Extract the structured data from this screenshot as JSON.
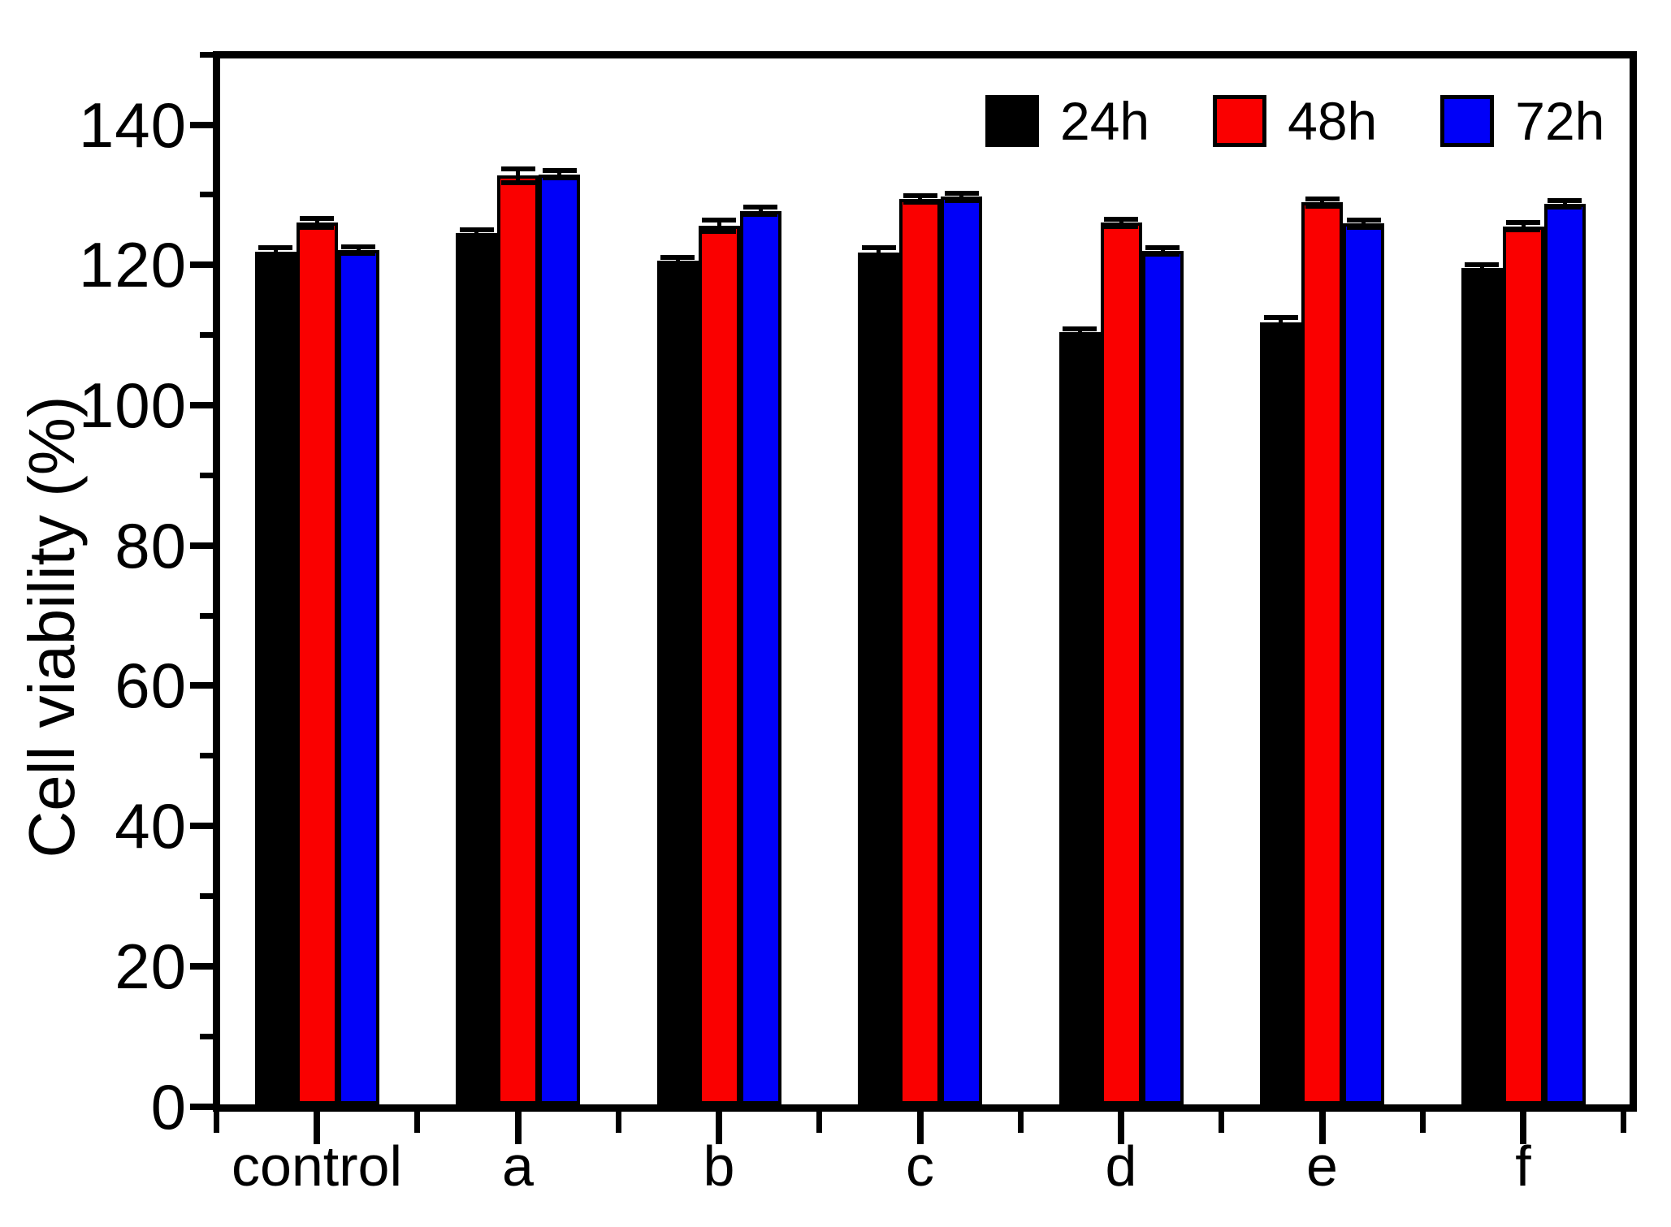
{
  "chart_data": {
    "type": "bar",
    "title": "",
    "xlabel": "",
    "ylabel": "Cell viability (%)",
    "categories": [
      "control",
      "a",
      "b",
      "c",
      "d",
      "e",
      "f"
    ],
    "series": [
      {
        "name": "24h",
        "color": "#000000",
        "values": [
          121.6,
          124.2,
          120.3,
          121.5,
          110.1,
          111.5,
          119.2
        ],
        "errors": [
          0.5,
          0.5,
          0.5,
          0.7,
          0.5,
          0.7,
          0.5
        ]
      },
      {
        "name": "48h",
        "color": "#fa0000",
        "values": [
          125.7,
          132.4,
          125.3,
          129.1,
          125.7,
          128.6,
          125.2
        ],
        "errors": [
          0.6,
          1.0,
          0.8,
          0.5,
          0.5,
          0.5,
          0.5
        ]
      },
      {
        "name": "72h",
        "color": "#0000f8",
        "values": [
          121.8,
          132.6,
          127.4,
          129.4,
          121.7,
          125.6,
          128.4
        ],
        "errors": [
          0.5,
          0.5,
          0.5,
          0.5,
          0.5,
          0.5,
          0.5
        ]
      }
    ],
    "y_axis": {
      "min": 0,
      "max": 149,
      "major_ticks": [
        0,
        20,
        40,
        60,
        80,
        100,
        120,
        140
      ],
      "minor_ticks": [
        10,
        30,
        50,
        70,
        90,
        110,
        130,
        150
      ],
      "label": "Cell viability (%)"
    },
    "legend": {
      "position": "top-right",
      "entries": [
        "24h",
        "48h",
        "72h"
      ]
    },
    "grid": false,
    "bar_edge_color": "#000000",
    "background": "#ffffff"
  }
}
